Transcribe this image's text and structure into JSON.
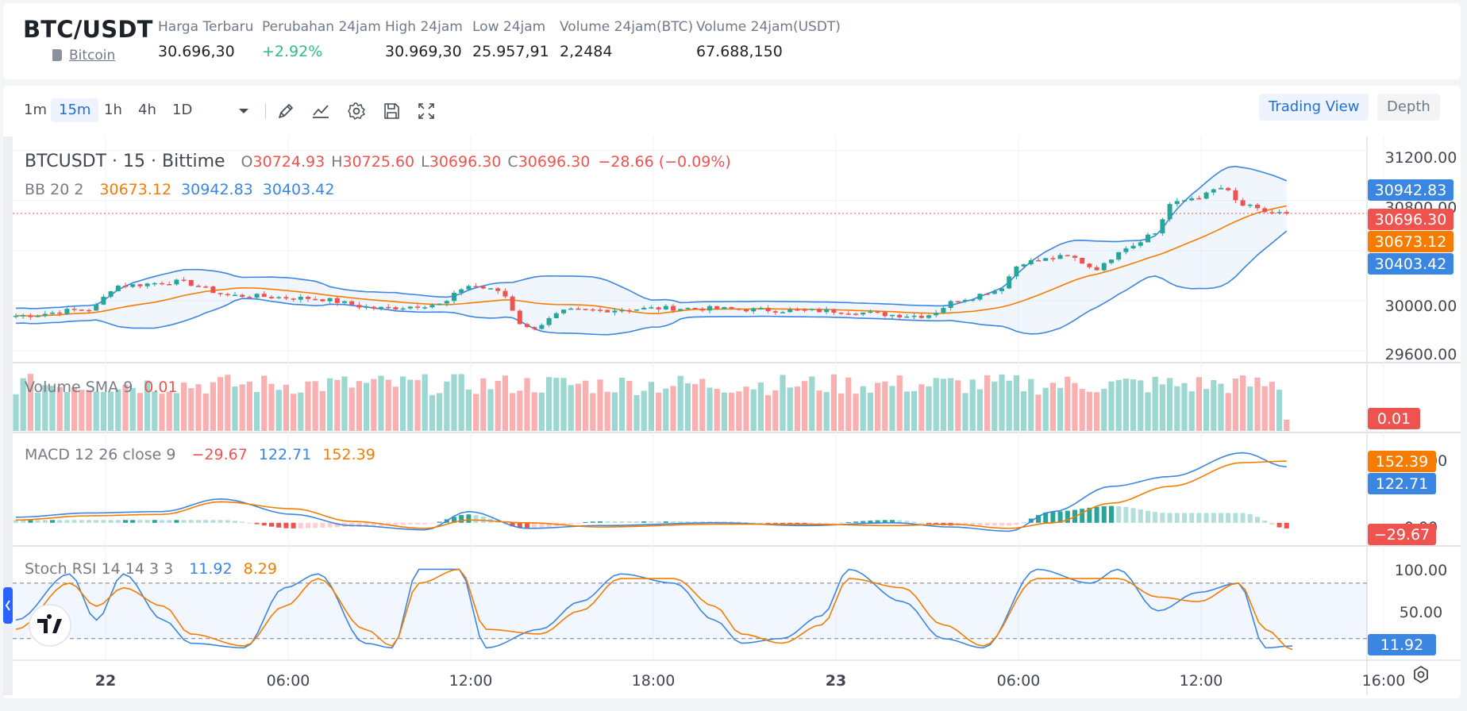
{
  "header": {
    "symbol": "BTC/USDT",
    "coin_link": "Bitcoin",
    "stats": [
      {
        "label": "Harga Terbaru",
        "value": "30.696,30"
      },
      {
        "label": "Perubahan 24jam",
        "value": "+2.92%"
      },
      {
        "label": "High 24jam",
        "value": "30.969,30"
      },
      {
        "label": "Low 24jam",
        "value": "25.957,91"
      },
      {
        "label": "Volume 24jam(BTC)",
        "value": "2,2484"
      },
      {
        "label": "Volume 24jam(USDT)",
        "value": "67.688,150"
      }
    ]
  },
  "toolbar": {
    "timeframes": [
      "1m",
      "15m",
      "1h",
      "4h",
      "1D"
    ],
    "active_timeframe": "15m",
    "icons": [
      "chevron-down-icon",
      "pen-icon",
      "line-chart-icon",
      "gear-icon",
      "save-icon",
      "fullscreen-icon"
    ],
    "views": [
      "Trading View",
      "Depth"
    ]
  },
  "colors": {
    "up": "#26a69a",
    "down": "#ef5350",
    "blue": "#2962ff",
    "orange": "#f57c00",
    "bb_blue": "#3a86e0"
  },
  "chart_data": {
    "type": "candlestick",
    "legend": {
      "title": "BTCUSDT · 15 · Bittime",
      "ohlc": [
        {
          "k": "O",
          "v": "30724.93"
        },
        {
          "k": "H",
          "v": "30725.60"
        },
        {
          "k": "L",
          "v": "30696.30"
        },
        {
          "k": "C",
          "v": "30696.30"
        }
      ],
      "change": "−28.66 (−0.09%)"
    },
    "price_axis": {
      "ticks": [
        "31200.00",
        "30800.00",
        "30000.00",
        "29600.00"
      ]
    },
    "price_tags": [
      {
        "text": "30942.83",
        "value": 30942.83,
        "color": "#3a86e0"
      },
      {
        "text": "30696.30",
        "value": 30696.3,
        "color": "#ef5350"
      },
      {
        "text": "30673.12",
        "value": 30673.12,
        "color": "#f57c00"
      },
      {
        "text": "30403.42",
        "value": 30403.42,
        "color": "#3a86e0"
      }
    ],
    "last_price": 30696.3,
    "price_range": [
      29550,
      31260
    ],
    "bollinger": {
      "label": "BB 20 2",
      "basis": "30673.12",
      "upper": "30942.83",
      "lower": "30403.42"
    },
    "candle_anchors": [
      [
        0,
        29880
      ],
      [
        10,
        29930
      ],
      [
        14,
        30120
      ],
      [
        22,
        30150
      ],
      [
        30,
        30040
      ],
      [
        40,
        30020
      ],
      [
        50,
        29940
      ],
      [
        58,
        29970
      ],
      [
        62,
        30120
      ],
      [
        66,
        30080
      ],
      [
        70,
        29780
      ],
      [
        76,
        29920
      ],
      [
        90,
        29940
      ],
      [
        110,
        29920
      ],
      [
        124,
        29880
      ],
      [
        130,
        30020
      ],
      [
        134,
        30080
      ],
      [
        138,
        30310
      ],
      [
        144,
        30350
      ],
      [
        148,
        30260
      ],
      [
        152,
        30430
      ],
      [
        156,
        30540
      ],
      [
        158,
        30770
      ],
      [
        162,
        30830
      ],
      [
        165,
        30900
      ],
      [
        168,
        30760
      ],
      [
        171,
        30710
      ],
      [
        174,
        30696.3
      ]
    ],
    "volume": {
      "label": "Volume SMA 9",
      "value": "0.01",
      "tag": "0.01"
    },
    "macd": {
      "label": "MACD 12 26 close 9",
      "values": [
        "−29.67",
        "122.71",
        "152.39"
      ],
      "tags": [
        "152.39",
        "122.71",
        "−29.67"
      ],
      "ticks": [
        "200.00",
        "0.00"
      ],
      "range": [
        -60,
        280
      ],
      "macd_anchors": [
        [
          0,
          20
        ],
        [
          10,
          35
        ],
        [
          20,
          40
        ],
        [
          28,
          85
        ],
        [
          38,
          30
        ],
        [
          46,
          -10
        ],
        [
          56,
          -25
        ],
        [
          62,
          40
        ],
        [
          70,
          -20
        ],
        [
          80,
          -10
        ],
        [
          96,
          0
        ],
        [
          108,
          -10
        ],
        [
          120,
          0
        ],
        [
          128,
          -15
        ],
        [
          136,
          -30
        ],
        [
          142,
          40
        ],
        [
          150,
          130
        ],
        [
          158,
          165
        ],
        [
          168,
          250
        ],
        [
          174,
          200
        ],
        [
          179,
          145
        ]
      ],
      "signal_anchors": [
        [
          0,
          10
        ],
        [
          10,
          25
        ],
        [
          20,
          30
        ],
        [
          28,
          75
        ],
        [
          38,
          50
        ],
        [
          46,
          5
        ],
        [
          56,
          -20
        ],
        [
          62,
          10
        ],
        [
          70,
          0
        ],
        [
          80,
          -15
        ],
        [
          96,
          -5
        ],
        [
          108,
          -5
        ],
        [
          120,
          -10
        ],
        [
          128,
          -5
        ],
        [
          136,
          -20
        ],
        [
          142,
          0
        ],
        [
          150,
          70
        ],
        [
          158,
          130
        ],
        [
          168,
          215
        ],
        [
          174,
          220
        ],
        [
          179,
          190
        ]
      ]
    },
    "stoch_rsi": {
      "label": "Stoch RSI 14 14 3 3",
      "k": "11.92",
      "d": "8.29",
      "tags": [
        "11.92"
      ],
      "ticks": [
        "100.00",
        "50.00"
      ],
      "range": [
        0,
        110
      ],
      "bands": [
        80,
        20
      ],
      "k_anchors": [
        [
          0,
          40
        ],
        [
          8,
          90
        ],
        [
          12,
          40
        ],
        [
          16,
          90
        ],
        [
          22,
          40
        ],
        [
          26,
          15
        ],
        [
          34,
          10
        ],
        [
          40,
          75
        ],
        [
          45,
          90
        ],
        [
          52,
          15
        ],
        [
          56,
          10
        ],
        [
          60,
          95
        ],
        [
          66,
          95
        ],
        [
          70,
          10
        ],
        [
          78,
          30
        ],
        [
          84,
          60
        ],
        [
          90,
          90
        ],
        [
          98,
          80
        ],
        [
          104,
          40
        ],
        [
          108,
          15
        ],
        [
          114,
          20
        ],
        [
          120,
          45
        ],
        [
          124,
          95
        ],
        [
          132,
          60
        ],
        [
          138,
          20
        ],
        [
          144,
          10
        ],
        [
          152,
          95
        ],
        [
          160,
          80
        ],
        [
          164,
          95
        ],
        [
          170,
          50
        ],
        [
          176,
          70
        ],
        [
          182,
          80
        ],
        [
          186,
          10
        ],
        [
          190,
          12
        ]
      ],
      "d_anchors": [
        [
          0,
          30
        ],
        [
          8,
          80
        ],
        [
          12,
          55
        ],
        [
          16,
          75
        ],
        [
          22,
          55
        ],
        [
          26,
          25
        ],
        [
          34,
          12
        ],
        [
          40,
          55
        ],
        [
          45,
          85
        ],
        [
          52,
          30
        ],
        [
          56,
          12
        ],
        [
          60,
          80
        ],
        [
          66,
          95
        ],
        [
          70,
          30
        ],
        [
          78,
          25
        ],
        [
          84,
          50
        ],
        [
          90,
          85
        ],
        [
          98,
          85
        ],
        [
          104,
          55
        ],
        [
          108,
          25
        ],
        [
          114,
          15
        ],
        [
          120,
          35
        ],
        [
          124,
          85
        ],
        [
          132,
          75
        ],
        [
          138,
          35
        ],
        [
          144,
          12
        ],
        [
          152,
          85
        ],
        [
          160,
          85
        ],
        [
          164,
          85
        ],
        [
          170,
          65
        ],
        [
          176,
          60
        ],
        [
          182,
          80
        ],
        [
          186,
          30
        ],
        [
          190,
          8
        ]
      ]
    },
    "time_axis": [
      {
        "label": "22",
        "bold": true,
        "index": 0
      },
      {
        "label": "06:00",
        "bold": false,
        "index": 1
      },
      {
        "label": "12:00",
        "bold": false,
        "index": 2
      },
      {
        "label": "18:00",
        "bold": false,
        "index": 3
      },
      {
        "label": "23",
        "bold": true,
        "index": 4
      },
      {
        "label": "06:00",
        "bold": false,
        "index": 5
      },
      {
        "label": "12:00",
        "bold": false,
        "index": 6
      },
      {
        "label": "16:00",
        "bold": false,
        "index": 7
      }
    ],
    "bar_count": 175
  }
}
